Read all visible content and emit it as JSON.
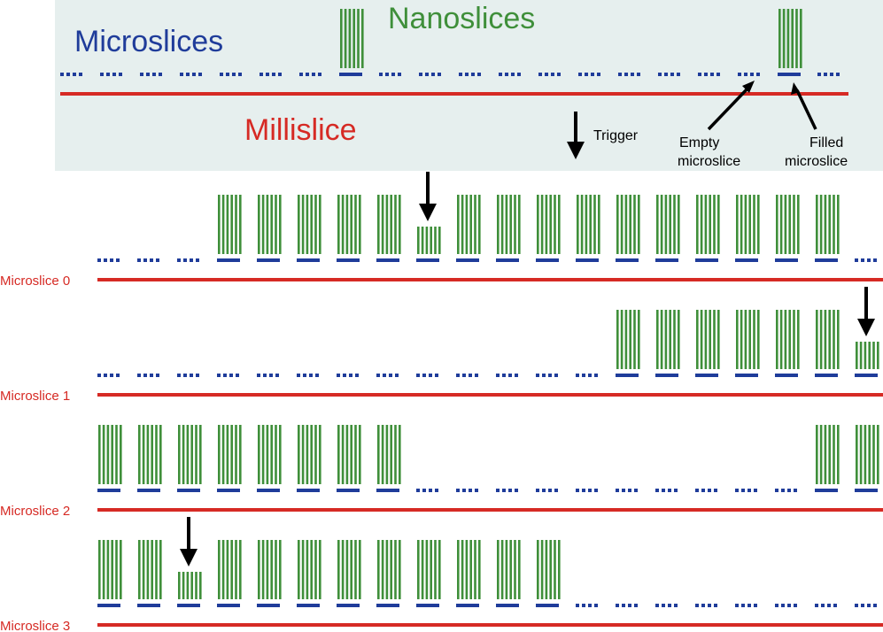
{
  "legend": {
    "microslices_label": "Microslices",
    "nanoslices_label": "Nanoslices",
    "milliscice_label": "Millislice",
    "trigger_label": "Trigger",
    "empty_label_line1": "Empty",
    "empty_label_line2": "microslice",
    "filled_label_line1": "Filled",
    "filled_label_line2": "microslice"
  },
  "rows": [
    {
      "label": "Microslice 0",
      "pattern": "EEEFFFFFFFFFFFFFFFFEE",
      "trigger_index": 8
    },
    {
      "label": "Microslice 1",
      "pattern": "EEEEEEEEEEEEEFFFFFFFF",
      "trigger_index": 19
    },
    {
      "label": "Microslice 2",
      "pattern": "FFFFFFFFEEEEEEEEEEFFF",
      "trigger_index": null
    },
    {
      "label": "Microslice 3",
      "pattern": "FFFFFFFFFFFFEEEEEEEEE",
      "trigger_index": 2
    }
  ],
  "colors": {
    "microslice_blue": "#1f3c9a",
    "nanoslice_green": "#3f8f3a",
    "milliscice_red": "#d62a24",
    "legend_bg": "#e6efee",
    "arrow": "#000000"
  }
}
